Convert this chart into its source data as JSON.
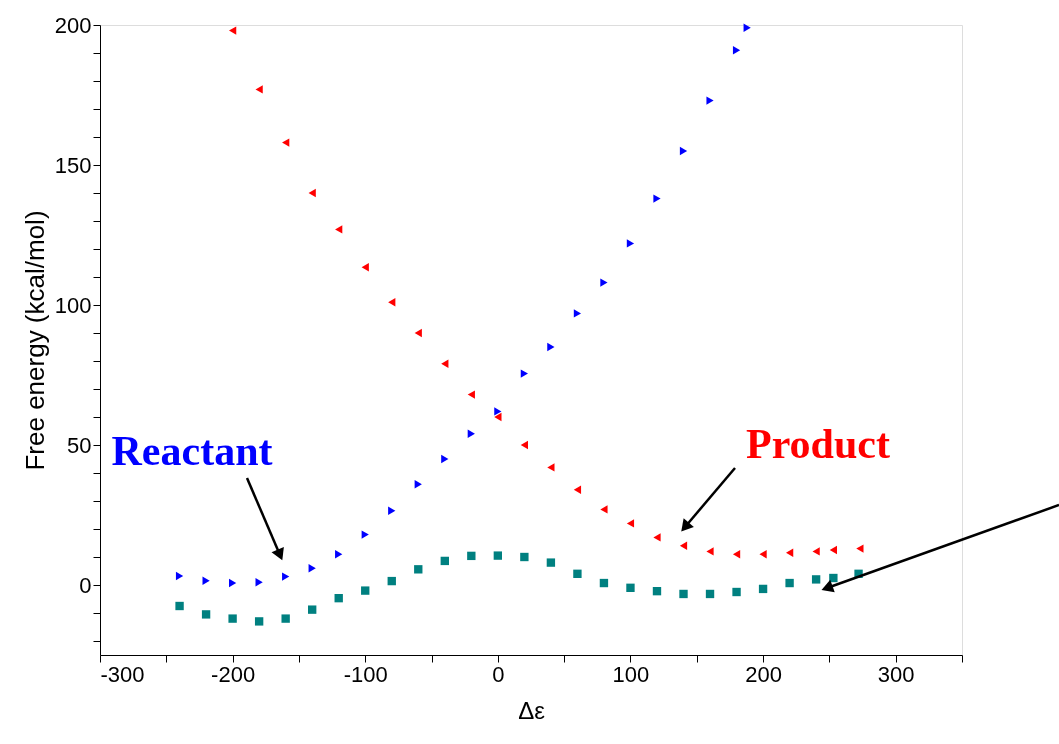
{
  "chart_data": {
    "type": "scatter",
    "xlabel": "Δε",
    "ylabel": "Free energy (kcal/mol)",
    "xlim": [
      -300,
      350
    ],
    "ylim": [
      -25,
      200
    ],
    "xticks": [
      -300,
      {
        "value": -250,
        "label": null
      },
      -200,
      {
        "value": -150,
        "label": null
      },
      -100,
      {
        "value": -50,
        "label": null
      },
      0,
      {
        "value": 50,
        "label": null
      },
      100,
      {
        "value": 150,
        "label": null
      },
      200,
      {
        "value": 250,
        "label": null
      },
      300,
      {
        "value": 350,
        "label": null
      }
    ],
    "yticks": [
      {
        "value": -20,
        "label": null
      },
      {
        "value": -10,
        "label": null
      },
      0,
      {
        "value": 10,
        "label": null
      },
      {
        "value": 20,
        "label": null
      },
      {
        "value": 30,
        "label": null
      },
      {
        "value": 40,
        "label": null
      },
      50,
      {
        "value": 60,
        "label": null
      },
      {
        "value": 70,
        "label": null
      },
      {
        "value": 80,
        "label": null
      },
      {
        "value": 90,
        "label": null
      },
      100,
      {
        "value": 110,
        "label": null
      },
      {
        "value": 120,
        "label": null
      },
      {
        "value": 130,
        "label": null
      },
      {
        "value": 140,
        "label": null
      },
      150,
      {
        "value": 160,
        "label": null
      },
      {
        "value": 170,
        "label": null
      },
      {
        "value": 180,
        "label": null
      },
      {
        "value": 190,
        "label": null
      },
      200
    ],
    "grid": false,
    "series": [
      {
        "name": "Reactant",
        "color": "#0000ff",
        "marker": "triangle-right",
        "x": [
          -240,
          -220,
          -200,
          -180,
          -160,
          -140,
          -120,
          -100,
          -80,
          -60,
          -40,
          -20,
          0,
          20,
          40,
          60,
          80,
          100,
          120,
          140,
          160,
          180,
          188
        ],
        "values": [
          3.2,
          1.5,
          0.7,
          1,
          3,
          6,
          11,
          18,
          26.5,
          36,
          45,
          54,
          62,
          75.5,
          85,
          97,
          108,
          122,
          138,
          155,
          173,
          191,
          199
        ]
      },
      {
        "name": "Product",
        "color": "#ff0000",
        "marker": "triangle-left",
        "x": [
          -200,
          -180,
          -160,
          -140,
          -120,
          -100,
          -80,
          -60,
          -40,
          -20,
          0,
          20,
          40,
          60,
          80,
          100,
          120,
          140,
          160,
          180,
          200,
          220,
          240,
          253,
          273
        ],
        "values": [
          198,
          177,
          158,
          140,
          127,
          113.5,
          101,
          90,
          79,
          68,
          60,
          50,
          42,
          34,
          27,
          22,
          17,
          14,
          12,
          11,
          11,
          11.5,
          12,
          12.5,
          13
        ]
      },
      {
        "color": "#008080",
        "marker": "square",
        "x": [
          -240,
          -220,
          -200,
          -180,
          -160,
          -140,
          -120,
          -100,
          -80,
          -60,
          -40,
          -20,
          0,
          20,
          40,
          60,
          80,
          100,
          120,
          140,
          160,
          180,
          200,
          220,
          240,
          253,
          272
        ],
        "values": [
          -7.5,
          -10.5,
          -12,
          -13,
          -12,
          -8.8,
          -4.7,
          -2,
          1.4,
          5.6,
          8.6,
          10.4,
          10.5,
          10,
          8,
          4,
          0.7,
          -1,
          -2.2,
          -3.2,
          -3.2,
          -2.5,
          -1.4,
          0.7,
          2,
          2.5,
          4
        ]
      }
    ]
  }
}
